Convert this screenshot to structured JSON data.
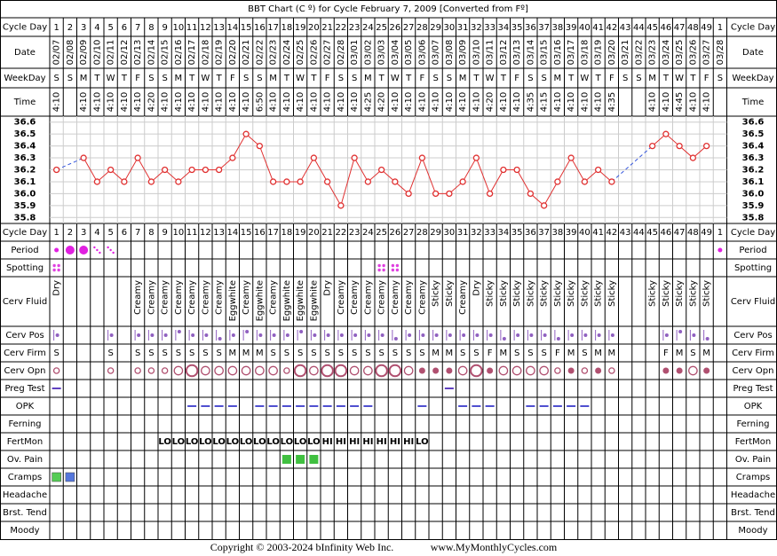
{
  "chart_data": {
    "type": "line",
    "title": "BBT Chart (C º) for Cycle February 7, 2009  [Converted from Fº]",
    "row_labels": {
      "cycle_day": "Cycle Day",
      "date": "Date",
      "weekday": "WeekDay",
      "time": "Time",
      "period": "Period",
      "spotting": "Spotting",
      "cerv_fluid": "Cerv Fluid",
      "cerv_pos": "Cerv Pos",
      "cerv_firm": "Cerv Firm",
      "cerv_opn": "Cerv Opn",
      "preg_test": "Preg Test",
      "opk": "OPK",
      "ferning": "Ferning",
      "fertmon": "FertMon",
      "ov_pain": "Ov. Pain",
      "cramps": "Cramps",
      "headache": "Headache",
      "brst_tend": "Brst. Tend",
      "moody": "Moody"
    },
    "cycle_days": [
      1,
      2,
      3,
      4,
      5,
      6,
      7,
      8,
      9,
      10,
      11,
      12,
      13,
      14,
      15,
      16,
      17,
      18,
      19,
      20,
      21,
      22,
      23,
      24,
      25,
      26,
      27,
      28,
      29,
      30,
      31,
      32,
      33,
      34,
      35,
      36,
      37,
      38,
      39,
      40,
      41,
      42,
      43,
      44,
      45,
      46,
      47,
      48,
      49,
      1
    ],
    "dates": [
      "02/07",
      "02/08",
      "02/09",
      "02/10",
      "02/11",
      "02/12",
      "02/13",
      "02/14",
      "02/15",
      "02/16",
      "02/17",
      "02/18",
      "02/19",
      "02/20",
      "02/21",
      "02/22",
      "02/23",
      "02/24",
      "02/25",
      "02/26",
      "02/27",
      "02/28",
      "03/01",
      "03/02",
      "03/03",
      "03/04",
      "03/05",
      "03/06",
      "03/07",
      "03/08",
      "03/09",
      "03/10",
      "03/11",
      "03/12",
      "03/13",
      "03/14",
      "03/15",
      "03/16",
      "03/17",
      "03/18",
      "03/19",
      "03/20",
      "03/21",
      "03/22",
      "03/23",
      "03/24",
      "03/25",
      "03/26",
      "03/27",
      "03/28"
    ],
    "weekdays": [
      "S",
      "S",
      "M",
      "T",
      "W",
      "T",
      "F",
      "S",
      "S",
      "M",
      "T",
      "W",
      "T",
      "F",
      "S",
      "S",
      "M",
      "T",
      "W",
      "T",
      "F",
      "S",
      "S",
      "M",
      "T",
      "W",
      "T",
      "F",
      "S",
      "S",
      "M",
      "T",
      "W",
      "T",
      "F",
      "S",
      "S",
      "M",
      "T",
      "W",
      "T",
      "F",
      "S",
      "S",
      "M",
      "T",
      "W",
      "T",
      "F",
      "S"
    ],
    "times": [
      "4:10",
      null,
      "4:10",
      "4:10",
      "4:10",
      "4:10",
      "4:10",
      "4:20",
      "4:10",
      "4:10",
      "4:10",
      "4:10",
      "4:10",
      "4:10",
      "4:10",
      "6:50",
      "4:10",
      "4:10",
      "4:10",
      "4:10",
      "4:10",
      "4:10",
      "4:10",
      "4:25",
      "4:20",
      "4:10",
      "4:10",
      "4:10",
      "4:10",
      "4:10",
      "4:10",
      "4:10",
      "4:20",
      "4:10",
      "4:10",
      "4:35",
      "4:15",
      "4:10",
      "4:10",
      "4:10",
      "4:10",
      "4:35",
      null,
      null,
      "4:10",
      "4:10",
      "4:45",
      "4:10",
      "4:10",
      null
    ],
    "color": "#e03030",
    "values": [
      36.2,
      null,
      36.3,
      36.1,
      36.2,
      36.1,
      36.3,
      36.1,
      36.2,
      36.1,
      36.2,
      36.2,
      36.2,
      36.3,
      36.5,
      36.4,
      36.1,
      36.1,
      36.1,
      36.3,
      36.1,
      35.9,
      36.3,
      36.1,
      36.2,
      36.1,
      36.0,
      36.3,
      36.0,
      36.0,
      36.1,
      36.3,
      36.0,
      36.2,
      36.2,
      36.0,
      35.9,
      36.1,
      36.3,
      36.1,
      36.2,
      36.1,
      null,
      null,
      36.4,
      36.5,
      36.4,
      36.3,
      36.4,
      null
    ],
    "ylim": [
      35.75,
      36.65
    ],
    "yticks": [
      36.6,
      36.5,
      36.4,
      36.3,
      36.2,
      36.1,
      {
        "value": 36.0,
        "label": "36.0"
      },
      35.9,
      35.8
    ],
    "grid": true,
    "period": [
      1,
      3,
      3,
      2,
      2,
      null,
      null,
      null,
      null,
      null,
      null,
      null,
      null,
      null,
      null,
      null,
      null,
      null,
      null,
      null,
      null,
      null,
      null,
      null,
      null,
      null,
      null,
      null,
      null,
      null,
      null,
      null,
      null,
      null,
      null,
      null,
      null,
      null,
      null,
      null,
      null,
      null,
      null,
      null,
      null,
      null,
      null,
      null,
      null,
      1
    ],
    "spotting": [
      1,
      null,
      null,
      null,
      null,
      null,
      null,
      null,
      null,
      null,
      null,
      null,
      null,
      null,
      null,
      null,
      null,
      null,
      null,
      null,
      null,
      null,
      null,
      null,
      1,
      1,
      null,
      null,
      null,
      null,
      null,
      null,
      null,
      null,
      null,
      null,
      null,
      null,
      null,
      null,
      null,
      null,
      null,
      null,
      null,
      null,
      null,
      null,
      null,
      null
    ],
    "cerv_fluid": [
      "Dry",
      null,
      null,
      null,
      null,
      null,
      "Creamy",
      "Creamy",
      "Creamy",
      "Creamy",
      "Creamy",
      "Creamy",
      "Creamy",
      "Eggwhite",
      "Creamy",
      "Eggwhite",
      "Creamy",
      "Eggwhite",
      "Eggwhite",
      "Eggwhite",
      "Dry",
      "Creamy",
      "Creamy",
      "Creamy",
      "Creamy",
      "Creamy",
      "Creamy",
      "Creamy",
      "Sticky",
      "Sticky",
      "Creamy",
      "Dry",
      "Sticky",
      "Sticky",
      "Sticky",
      "Sticky",
      "Sticky",
      "Sticky",
      "Sticky",
      "Sticky",
      "Sticky",
      "Sticky",
      null,
      null,
      "Sticky",
      "Sticky",
      "Sticky",
      "Sticky",
      "Sticky",
      null
    ],
    "cerv_pos": [
      2,
      null,
      null,
      null,
      2,
      null,
      2,
      2,
      2,
      3,
      2,
      2,
      1,
      2,
      3,
      2,
      2,
      2,
      3,
      2,
      2,
      2,
      2,
      2,
      2,
      1,
      2,
      2,
      2,
      2,
      2,
      2,
      2,
      1,
      2,
      2,
      2,
      1,
      2,
      2,
      2,
      2,
      null,
      null,
      null,
      2,
      3,
      2,
      1,
      null
    ],
    "cerv_firm": [
      "S",
      null,
      null,
      null,
      "S",
      null,
      "S",
      "S",
      "S",
      "S",
      "S",
      "S",
      "S",
      "M",
      "M",
      "M",
      "S",
      "S",
      "S",
      "S",
      "S",
      "S",
      "S",
      "S",
      "S",
      "S",
      "S",
      "S",
      "M",
      "M",
      "S",
      "S",
      "F",
      "M",
      "S",
      "S",
      "S",
      "F",
      "M",
      "S",
      "M",
      "M",
      null,
      null,
      null,
      "F",
      "M",
      "S",
      "M",
      null
    ],
    "cerv_opn": [
      1,
      null,
      null,
      null,
      1,
      null,
      1,
      1,
      1,
      2,
      3,
      2,
      2,
      2,
      2,
      2,
      2,
      1,
      3,
      2,
      3,
      3,
      2,
      2,
      3,
      3,
      2,
      0,
      0,
      0,
      2,
      3,
      0,
      2,
      2,
      2,
      2,
      1,
      0,
      1,
      0,
      1,
      null,
      null,
      null,
      0,
      0,
      2,
      0,
      null
    ],
    "preg_test": [
      1,
      null,
      null,
      null,
      null,
      null,
      null,
      null,
      null,
      null,
      null,
      null,
      null,
      null,
      null,
      null,
      null,
      null,
      null,
      null,
      null,
      null,
      null,
      null,
      null,
      null,
      null,
      null,
      null,
      1,
      null,
      null,
      null,
      null,
      null,
      null,
      null,
      null,
      null,
      null,
      null,
      null,
      null,
      null,
      null,
      null,
      null,
      null,
      null,
      null
    ],
    "opk": [
      null,
      null,
      null,
      null,
      null,
      null,
      null,
      null,
      null,
      null,
      1,
      1,
      1,
      1,
      null,
      1,
      1,
      1,
      1,
      1,
      1,
      1,
      1,
      1,
      null,
      null,
      null,
      1,
      null,
      null,
      1,
      1,
      1,
      null,
      null,
      1,
      1,
      1,
      1,
      1,
      null,
      null,
      null,
      null,
      null,
      null,
      null,
      null,
      null,
      null
    ],
    "fertmon": [
      null,
      null,
      null,
      null,
      null,
      null,
      null,
      null,
      "LO",
      "LO",
      "LO",
      "LO",
      "LO",
      "LO",
      "LO",
      "LO",
      "LO",
      "LO",
      "LO",
      "LO",
      "HI",
      "HI",
      "HI",
      "HI",
      "HI",
      "HI",
      "HI",
      "LO",
      null,
      null,
      null,
      null,
      null,
      null,
      null,
      null,
      null,
      null,
      null,
      null,
      null,
      null,
      null,
      null,
      null,
      null,
      null,
      null,
      null,
      null
    ],
    "ov_pain": [
      null,
      null,
      null,
      null,
      null,
      null,
      null,
      null,
      null,
      null,
      null,
      null,
      null,
      null,
      null,
      null,
      null,
      1,
      1,
      1,
      null,
      null,
      null,
      null,
      null,
      null,
      null,
      null,
      null,
      null,
      null,
      null,
      null,
      null,
      null,
      null,
      null,
      null,
      null,
      null,
      null,
      null,
      null,
      null,
      null,
      null,
      null,
      null,
      null,
      null
    ],
    "cramps": [
      "#55cc55",
      "#5577dd",
      null,
      null,
      null,
      null,
      null,
      null,
      null,
      null,
      null,
      null,
      null,
      null,
      null,
      null,
      null,
      null,
      null,
      null,
      null,
      null,
      null,
      null,
      null,
      null,
      null,
      null,
      null,
      null,
      null,
      null,
      null,
      null,
      null,
      null,
      null,
      null,
      null,
      null,
      null,
      null,
      null,
      null,
      null,
      null,
      null,
      null,
      null,
      null
    ],
    "copyright": "Copyright © 2003-2024 bInfinity Web Inc.",
    "website": "www.MyMonthlyCycles.com"
  }
}
